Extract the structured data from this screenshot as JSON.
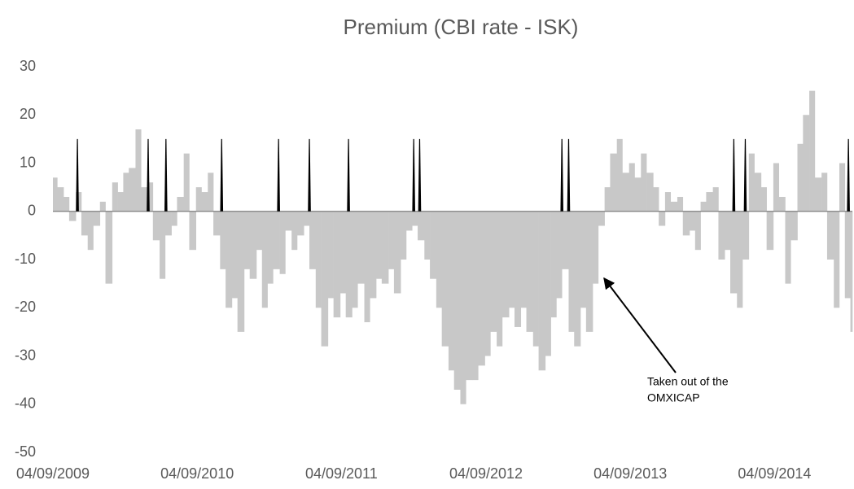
{
  "chart_data": {
    "type": "bar",
    "title": "Premium (CBI rate - ISK)",
    "xlim": [
      "2009-09-04",
      "2015-03-20"
    ],
    "xticks": [
      {
        "value": "2009-09-04",
        "label": "04/09/2009"
      },
      {
        "value": "2010-09-04",
        "label": "04/09/2010"
      },
      {
        "value": "2011-09-04",
        "label": "04/09/2011"
      },
      {
        "value": "2012-09-04",
        "label": "04/09/2012"
      },
      {
        "value": "2013-09-04",
        "label": "04/09/2013"
      },
      {
        "value": "2014-09-04",
        "label": "04/09/2014"
      }
    ],
    "ylim": [
      -50,
      30
    ],
    "yticks": [
      -50,
      -40,
      -30,
      -20,
      -10,
      0,
      10,
      20,
      30
    ],
    "grid": false,
    "premium": {
      "color": "#c8c8c8",
      "x": [
        "2009-09-04",
        "2009-09-15",
        "2009-10-01",
        "2009-10-15",
        "2009-11-01",
        "2009-11-15",
        "2009-12-01",
        "2009-12-15",
        "2010-01-01",
        "2010-01-15",
        "2010-02-01",
        "2010-02-15",
        "2010-03-01",
        "2010-03-15",
        "2010-04-01",
        "2010-04-15",
        "2010-05-01",
        "2010-05-15",
        "2010-06-01",
        "2010-06-15",
        "2010-07-01",
        "2010-07-15",
        "2010-08-01",
        "2010-08-15",
        "2010-09-01",
        "2010-09-15",
        "2010-10-01",
        "2010-10-15",
        "2010-11-01",
        "2010-11-15",
        "2010-12-01",
        "2010-12-15",
        "2011-01-01",
        "2011-01-15",
        "2011-02-01",
        "2011-02-15",
        "2011-03-01",
        "2011-03-15",
        "2011-04-01",
        "2011-04-15",
        "2011-05-01",
        "2011-05-15",
        "2011-06-01",
        "2011-06-15",
        "2011-07-01",
        "2011-07-15",
        "2011-08-01",
        "2011-08-15",
        "2011-09-01",
        "2011-09-15",
        "2011-10-01",
        "2011-10-15",
        "2011-11-01",
        "2011-11-15",
        "2011-12-01",
        "2011-12-15",
        "2012-01-01",
        "2012-01-15",
        "2012-02-01",
        "2012-02-15",
        "2012-03-01",
        "2012-03-15",
        "2012-04-01",
        "2012-04-15",
        "2012-05-01",
        "2012-05-15",
        "2012-06-01",
        "2012-06-15",
        "2012-07-01",
        "2012-07-15",
        "2012-08-01",
        "2012-08-15",
        "2012-09-01",
        "2012-09-15",
        "2012-10-01",
        "2012-10-15",
        "2012-11-01",
        "2012-11-15",
        "2012-12-01",
        "2012-12-15",
        "2013-01-01",
        "2013-01-15",
        "2013-02-01",
        "2013-02-15",
        "2013-03-01",
        "2013-03-15",
        "2013-04-01",
        "2013-04-15",
        "2013-05-01",
        "2013-05-15",
        "2013-06-01",
        "2013-06-15",
        "2013-07-01",
        "2013-07-15",
        "2013-08-01",
        "2013-08-15",
        "2013-09-01",
        "2013-09-15",
        "2013-10-01",
        "2013-10-15",
        "2013-11-01",
        "2013-11-15",
        "2013-12-01",
        "2013-12-15",
        "2014-01-01",
        "2014-01-15",
        "2014-02-01",
        "2014-02-15",
        "2014-03-01",
        "2014-03-15",
        "2014-04-01",
        "2014-04-15",
        "2014-05-01",
        "2014-05-15",
        "2014-06-01",
        "2014-06-15",
        "2014-07-01",
        "2014-07-15",
        "2014-08-01",
        "2014-08-15",
        "2014-09-01",
        "2014-09-15",
        "2014-10-01",
        "2014-10-15",
        "2014-11-01",
        "2014-11-15",
        "2014-12-01",
        "2014-12-15",
        "2015-01-01",
        "2015-01-15",
        "2015-02-01",
        "2015-02-15",
        "2015-03-01",
        "2015-03-15"
      ],
      "values": [
        7,
        5,
        3,
        -2,
        4,
        -5,
        -8,
        -3,
        2,
        -15,
        6,
        4,
        8,
        9,
        17,
        5,
        6,
        -6,
        -14,
        -5,
        -3,
        3,
        12,
        -8,
        5,
        4,
        8,
        -5,
        -12,
        -20,
        -18,
        -25,
        -12,
        -14,
        -8,
        -20,
        -15,
        -12,
        -13,
        -4,
        -8,
        -5,
        -3,
        -12,
        -20,
        -28,
        -18,
        -22,
        -17,
        -22,
        -20,
        -15,
        -23,
        -18,
        -14,
        -15,
        -12,
        -17,
        -10,
        -4,
        -3,
        -6,
        -10,
        -14,
        -20,
        -28,
        -33,
        -37,
        -40,
        -35,
        -35,
        -32,
        -30,
        -25,
        -28,
        -22,
        -20,
        -24,
        -20,
        -25,
        -28,
        -33,
        -30,
        -22,
        -18,
        -12,
        -25,
        -28,
        -20,
        -25,
        -15,
        -3,
        5,
        12,
        15,
        8,
        10,
        7,
        12,
        8,
        5,
        -3,
        4,
        2,
        3,
        -5,
        -4,
        -8,
        2,
        4,
        5,
        -10,
        -8,
        -17,
        -20,
        -10,
        12,
        8,
        5,
        -8,
        10,
        3,
        -15,
        -6,
        14,
        20,
        25,
        7,
        8,
        -10,
        -20,
        10,
        -18,
        -25
      ]
    },
    "events": {
      "color": "#000000",
      "x": [
        "2009-11-05",
        "2010-05-03",
        "2010-06-17",
        "2010-11-05",
        "2011-03-29",
        "2011-06-15",
        "2011-09-22",
        "2012-03-05",
        "2012-03-20",
        "2013-03-15",
        "2013-04-01",
        "2014-05-24",
        "2014-06-22",
        "2015-03-10"
      ],
      "values": [
        15,
        15,
        15,
        15,
        15,
        15,
        15,
        15,
        15,
        15,
        15,
        15,
        15,
        15
      ]
    },
    "annotation": [
      "Taken out of the",
      "OMXICAP"
    ]
  }
}
